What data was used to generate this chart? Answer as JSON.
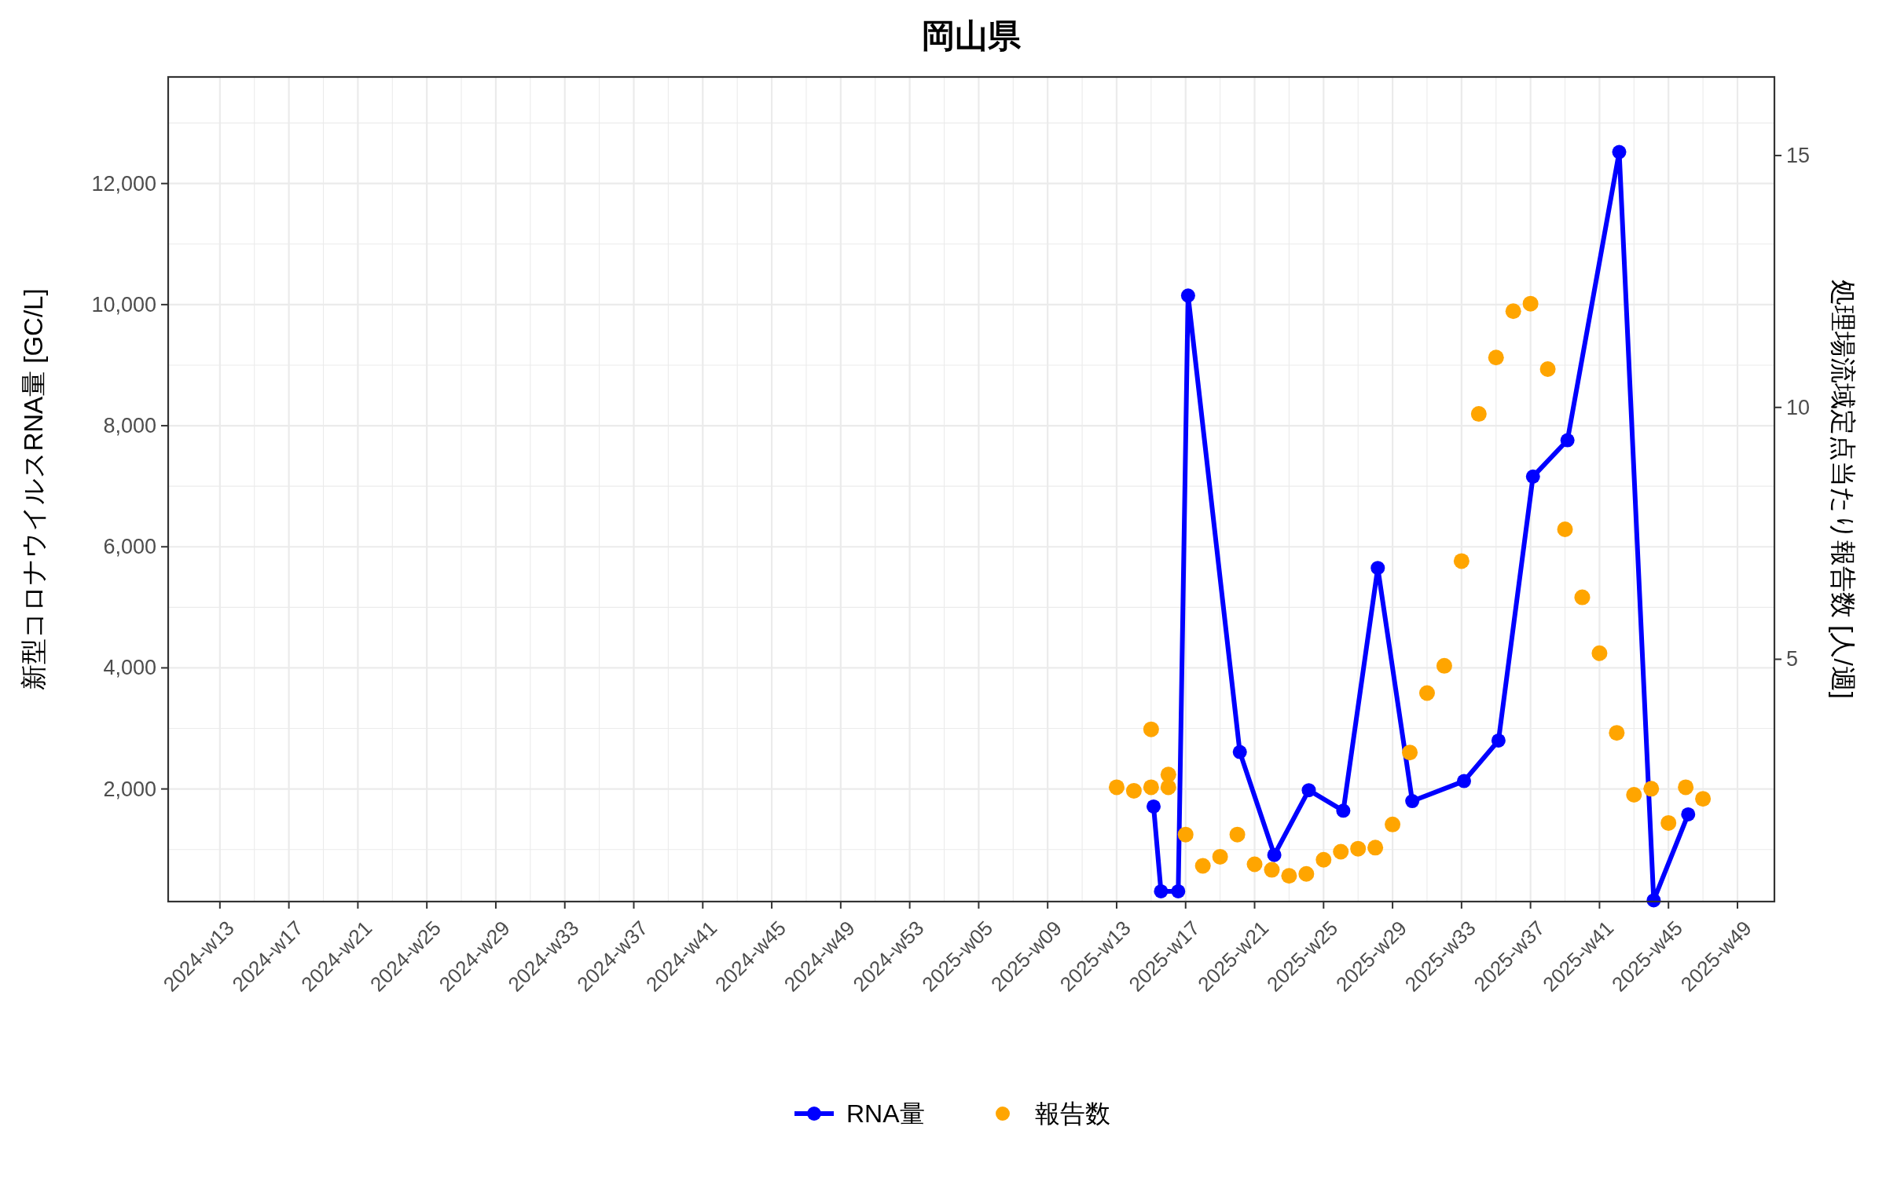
{
  "chart_data": {
    "type": "line",
    "title": "岡山県",
    "ylabel": "新型コロナウイルスRNA量 [GC/L]",
    "y2label": "処理場流域定点当たり報告数 [人/週]",
    "xlim": [
      "2024-03-04",
      "2025-12-16"
    ],
    "xticks": [
      {
        "value": "2024-03-25",
        "label": "2024-w13"
      },
      {
        "value": "2024-04-22",
        "label": "2024-w17"
      },
      {
        "value": "2024-05-20",
        "label": "2024-w21"
      },
      {
        "value": "2024-06-17",
        "label": "2024-w25"
      },
      {
        "value": "2024-07-15",
        "label": "2024-w29"
      },
      {
        "value": "2024-08-12",
        "label": "2024-w33"
      },
      {
        "value": "2024-09-09",
        "label": "2024-w37"
      },
      {
        "value": "2024-10-07",
        "label": "2024-w41"
      },
      {
        "value": "2024-11-04",
        "label": "2024-w45"
      },
      {
        "value": "2024-12-02",
        "label": "2024-w49"
      },
      {
        "value": "2024-12-30",
        "label": "2024-w53"
      },
      {
        "value": "2025-01-27",
        "label": "2025-w05"
      },
      {
        "value": "2025-02-24",
        "label": "2025-w09"
      },
      {
        "value": "2025-03-24",
        "label": "2025-w13"
      },
      {
        "value": "2025-04-21",
        "label": "2025-w17"
      },
      {
        "value": "2025-05-19",
        "label": "2025-w21"
      },
      {
        "value": "2025-06-16",
        "label": "2025-w25"
      },
      {
        "value": "2025-07-14",
        "label": "2025-w29"
      },
      {
        "value": "2025-08-11",
        "label": "2025-w33"
      },
      {
        "value": "2025-09-08",
        "label": "2025-w37"
      },
      {
        "value": "2025-10-06",
        "label": "2025-w41"
      },
      {
        "value": "2025-11-03",
        "label": "2025-w45"
      },
      {
        "value": "2025-12-01",
        "label": "2025-w49"
      }
    ],
    "ylim": [
      140,
      13760
    ],
    "yticks": [
      {
        "value": 2000,
        "label": "2,000"
      },
      {
        "value": 4000,
        "label": "4,000"
      },
      {
        "value": 6000,
        "label": "6,000"
      },
      {
        "value": 8000,
        "label": "8,000"
      },
      {
        "value": 10000,
        "label": "10,000"
      },
      {
        "value": 12000,
        "label": "12,000"
      }
    ],
    "y2lim": [
      0.19,
      16.56
    ],
    "y2ticks": [
      5,
      10,
      15
    ],
    "grid": true,
    "legend": "bottom",
    "marker": "circle",
    "series": [
      {
        "name": "RNA量",
        "color": "#0000ff",
        "x": [
          "2025-04-08",
          "2025-04-11",
          "2025-04-18",
          "2025-04-22",
          "2025-05-13",
          "2025-05-27",
          "2025-06-10",
          "2025-06-24",
          "2025-07-08",
          "2025-07-22",
          "2025-08-12",
          "2025-08-26",
          "2025-09-09",
          "2025-09-23",
          "2025-10-14",
          "2025-10-28",
          "2025-11-11"
        ],
        "values": [
          1710,
          310,
          310,
          10150,
          2610,
          910,
          1980,
          1640,
          5650,
          1800,
          2130,
          2800,
          7160,
          7760,
          12520,
          160,
          1580
        ]
      },
      {
        "name": "報告数",
        "type": "scatter",
        "axis": "y2",
        "color": "#ffa500",
        "x": [
          "2025-03-24",
          "2025-03-31",
          "2025-04-07",
          "2025-04-07",
          "2025-04-14",
          "2025-04-14",
          "2025-04-21",
          "2025-04-28",
          "2025-05-05",
          "2025-05-12",
          "2025-05-19",
          "2025-05-26",
          "2025-06-02",
          "2025-06-09",
          "2025-06-16",
          "2025-06-23",
          "2025-06-30",
          "2025-07-07",
          "2025-07-14",
          "2025-07-21",
          "2025-07-28",
          "2025-08-04",
          "2025-08-11",
          "2025-08-18",
          "2025-08-25",
          "2025-09-01",
          "2025-09-08",
          "2025-09-15",
          "2025-09-22",
          "2025-09-29",
          "2025-10-06",
          "2025-10-13",
          "2025-10-20",
          "2025-10-27",
          "2025-11-03",
          "2025-11-10",
          "2025-11-17"
        ],
        "values": [
          2.46,
          2.39,
          3.61,
          2.46,
          2.71,
          2.46,
          1.52,
          0.9,
          1.08,
          1.52,
          0.93,
          0.82,
          0.7,
          0.74,
          1.02,
          1.18,
          1.24,
          1.26,
          1.72,
          3.15,
          4.33,
          4.87,
          6.95,
          9.87,
          10.99,
          11.91,
          12.06,
          10.76,
          7.58,
          6.23,
          5.12,
          3.54,
          2.31,
          2.43,
          1.75,
          2.46,
          2.23
        ]
      }
    ]
  }
}
